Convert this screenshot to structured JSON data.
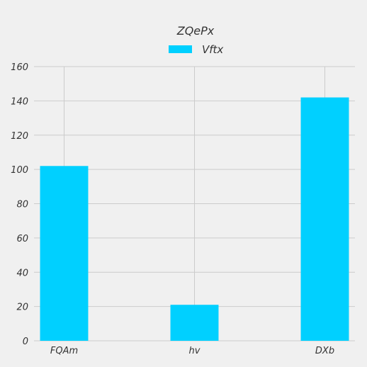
{
  "chart_data": {
    "type": "bar",
    "title": "ZQePx",
    "categories": [
      "FQAm",
      "hv",
      "DXb"
    ],
    "series": [
      {
        "name": "Vftx",
        "values": [
          102,
          21,
          142
        ],
        "color": "#00d0ff"
      }
    ],
    "ylim": [
      0,
      160
    ],
    "yticks": [
      0,
      20,
      40,
      60,
      80,
      100,
      120,
      140,
      160
    ],
    "grid": true,
    "legend": "top-center"
  }
}
